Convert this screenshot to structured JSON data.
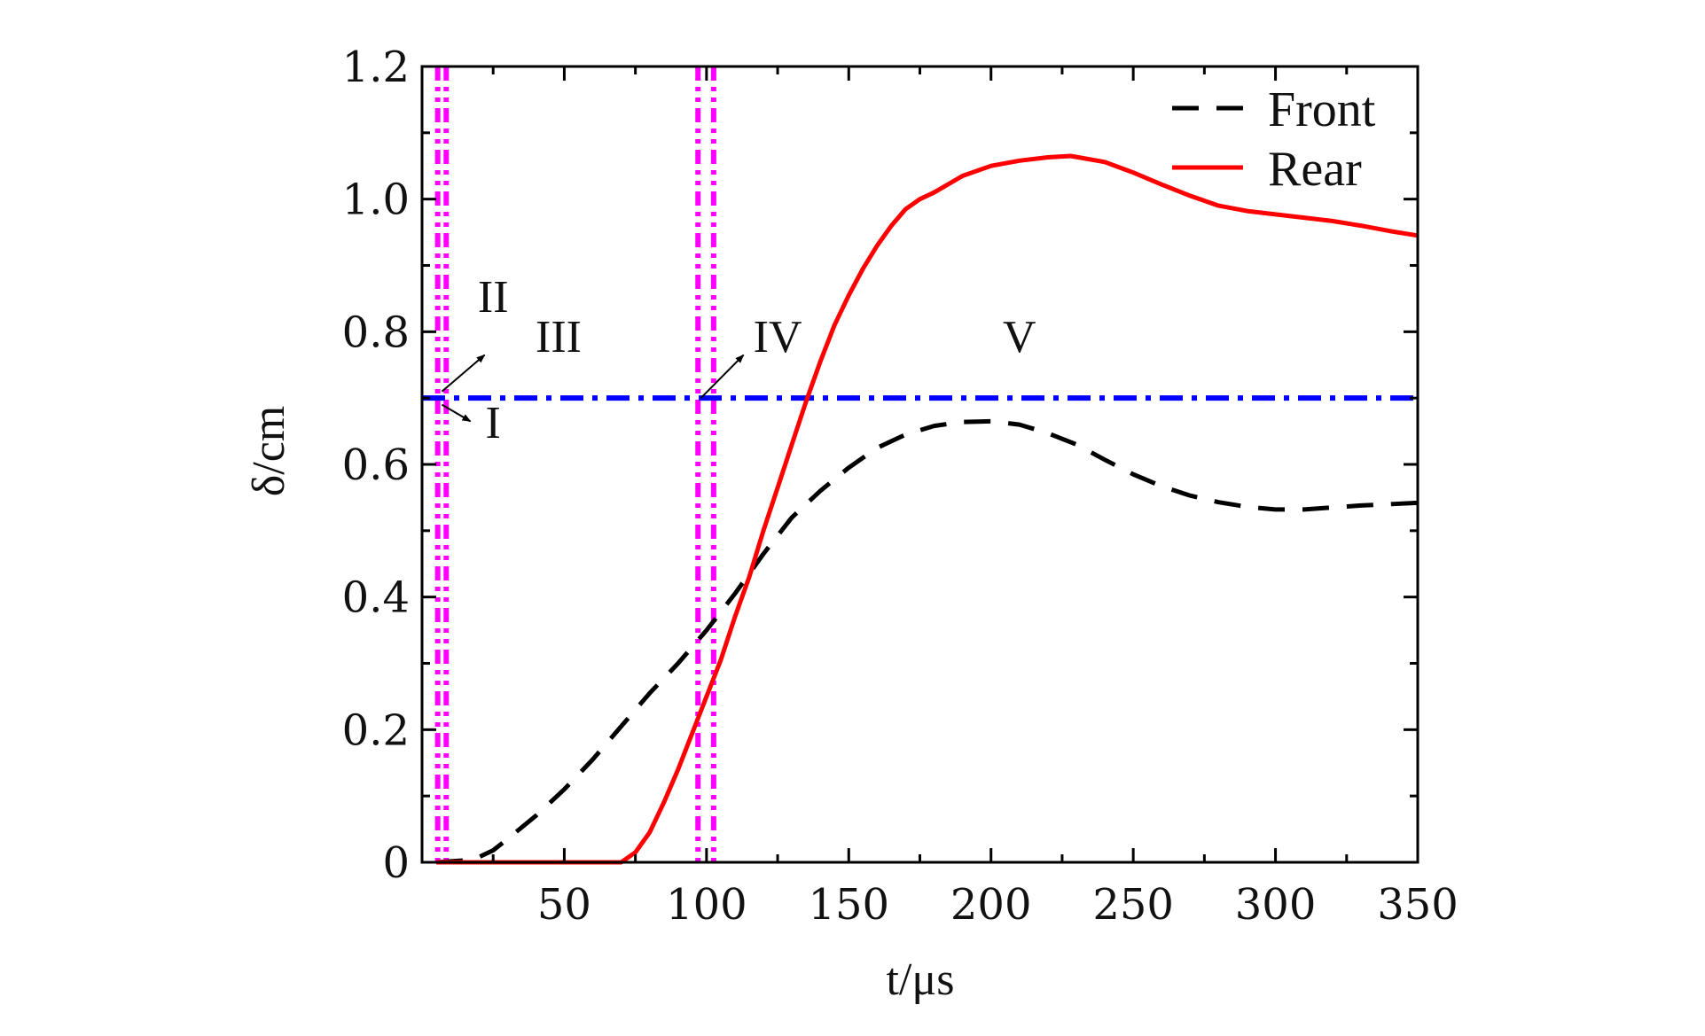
{
  "chart_data": {
    "type": "line",
    "xlabel": "t/μs",
    "ylabel": "δ/cm",
    "xlim": [
      0,
      350
    ],
    "ylim": [
      0,
      1.2
    ],
    "x_ticks": [
      50,
      100,
      150,
      200,
      250,
      300,
      350
    ],
    "x_tick_labels": [
      "50",
      "100",
      "150",
      "200",
      "250",
      "300",
      "350"
    ],
    "y_ticks": [
      0,
      0.2,
      0.4,
      0.6,
      0.8,
      1.0,
      1.2
    ],
    "y_tick_labels": [
      "0",
      "0.2",
      "0.4",
      "0.6",
      "0.8",
      "1.0",
      "1.2"
    ],
    "grid": false,
    "legend_position": "top-right",
    "series": [
      {
        "name": "Front",
        "style": "dashed",
        "color": "#000000",
        "x": [
          5,
          15,
          20,
          25,
          30,
          40,
          50,
          60,
          70,
          80,
          90,
          100,
          110,
          120,
          130,
          140,
          150,
          160,
          170,
          180,
          190,
          200,
          210,
          220,
          230,
          240,
          250,
          260,
          270,
          280,
          290,
          300,
          310,
          320,
          330,
          340,
          350
        ],
        "y": [
          0,
          0.003,
          0.008,
          0.018,
          0.035,
          0.07,
          0.11,
          0.155,
          0.205,
          0.255,
          0.3,
          0.35,
          0.405,
          0.465,
          0.52,
          0.56,
          0.595,
          0.625,
          0.645,
          0.658,
          0.664,
          0.665,
          0.66,
          0.647,
          0.63,
          0.607,
          0.585,
          0.567,
          0.553,
          0.543,
          0.536,
          0.532,
          0.532,
          0.535,
          0.538,
          0.54,
          0.542
        ]
      },
      {
        "name": "Rear",
        "style": "solid",
        "color": "#ff0000",
        "x": [
          5,
          30,
          50,
          70,
          75,
          80,
          85,
          90,
          95,
          100,
          105,
          110,
          115,
          120,
          125,
          130,
          135,
          140,
          145,
          150,
          155,
          160,
          165,
          170,
          175,
          180,
          190,
          200,
          210,
          220,
          228,
          240,
          250,
          260,
          270,
          280,
          290,
          300,
          310,
          320,
          330,
          340,
          350
        ],
        "y": [
          0,
          0,
          0,
          0,
          0.015,
          0.045,
          0.09,
          0.14,
          0.195,
          0.25,
          0.305,
          0.37,
          0.43,
          0.5,
          0.565,
          0.63,
          0.695,
          0.755,
          0.81,
          0.855,
          0.895,
          0.93,
          0.96,
          0.985,
          1.0,
          1.01,
          1.035,
          1.05,
          1.058,
          1.063,
          1.065,
          1.056,
          1.04,
          1.022,
          1.005,
          0.99,
          0.982,
          0.977,
          0.972,
          0.967,
          0.96,
          0.952,
          0.945
        ]
      }
    ],
    "reference_lines": {
      "horizontal": {
        "y": 0.7,
        "style": "dash-dot",
        "color": "#0000ff"
      },
      "vertical": [
        {
          "x": 5.5,
          "style": "dash-dot-dot",
          "color": "#ff00ff"
        },
        {
          "x": 8.5,
          "style": "dash-dot-dot",
          "color": "#ff00ff"
        },
        {
          "x": 97,
          "style": "dash-dot-dot",
          "color": "#ff00ff"
        },
        {
          "x": 102.5,
          "style": "dash-dot-dot",
          "color": "#ff00ff"
        }
      ]
    },
    "annotations": [
      {
        "text": "I",
        "x": 25,
        "y": 0.64
      },
      {
        "text": "II",
        "x": 25,
        "y": 0.83
      },
      {
        "text": "III",
        "x": 48,
        "y": 0.77
      },
      {
        "text": "IV",
        "x": 125,
        "y": 0.77
      },
      {
        "text": "V",
        "x": 210,
        "y": 0.77
      }
    ],
    "arrows": [
      {
        "from": [
          7,
          0.69
        ],
        "to": [
          17,
          0.665
        ]
      },
      {
        "from": [
          7,
          0.71
        ],
        "to": [
          22,
          0.765
        ]
      },
      {
        "from": [
          98,
          0.7
        ],
        "to": [
          113,
          0.765
        ]
      }
    ]
  }
}
